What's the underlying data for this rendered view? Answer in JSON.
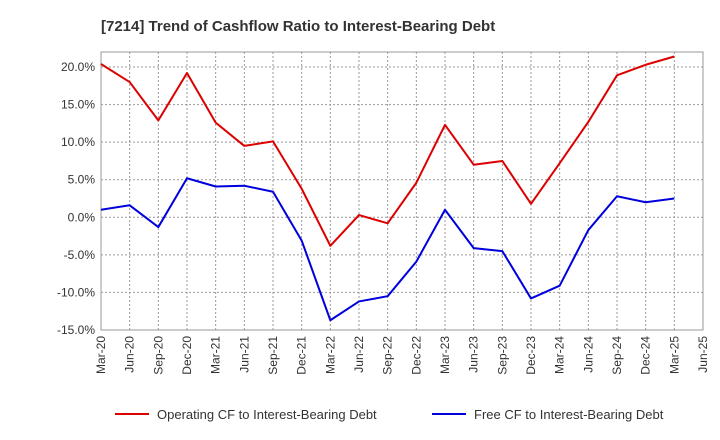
{
  "chart_data": {
    "type": "line",
    "title": "[7214]  Trend of Cashflow Ratio to Interest-Bearing Debt",
    "x": [
      "Mar-20",
      "Jun-20",
      "Sep-20",
      "Dec-20",
      "Mar-21",
      "Jun-21",
      "Sep-21",
      "Dec-21",
      "Mar-22",
      "Jun-22",
      "Sep-22",
      "Dec-22",
      "Mar-23",
      "Jun-23",
      "Sep-23",
      "Dec-23",
      "Mar-24",
      "Jun-24",
      "Sep-24",
      "Dec-24",
      "Mar-25",
      "Jun-25"
    ],
    "ylim": [
      -15,
      22
    ],
    "yticks": [
      20,
      15,
      10,
      5,
      0,
      -5,
      -10,
      -15
    ],
    "ytick_labels": [
      "20.0%",
      "15.0%",
      "10.0%",
      "5.0%",
      "0.0%",
      "-5.0%",
      "-10.0%",
      "-15.0%"
    ],
    "grid": true,
    "legend_position": "bottom",
    "series": [
      {
        "name": "Operating CF to Interest-Bearing Debt",
        "color": "#dd0000",
        "values": [
          20.4,
          18.0,
          12.9,
          19.2,
          12.6,
          9.5,
          10.1,
          3.8,
          -3.8,
          0.3,
          -0.8,
          4.6,
          12.3,
          7.0,
          7.5,
          1.8,
          7.2,
          12.7,
          18.9,
          20.3,
          21.4,
          null
        ]
      },
      {
        "name": "Free CF to Interest-Bearing Debt",
        "color": "#0000dd",
        "values": [
          1.0,
          1.6,
          -1.3,
          5.2,
          4.1,
          4.2,
          3.4,
          -3.1,
          -13.7,
          -11.2,
          -10.5,
          -5.9,
          1.0,
          -4.1,
          -4.5,
          -10.8,
          -9.1,
          -1.7,
          2.8,
          2.0,
          2.5,
          null
        ]
      }
    ]
  }
}
